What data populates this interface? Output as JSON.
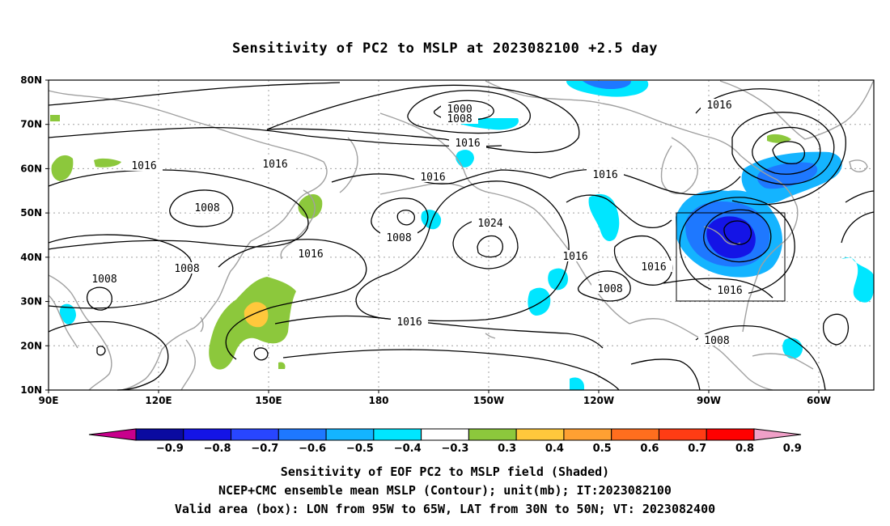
{
  "title": "Sensitivity of PC2 to MSLP at 2023082100 +2.5 day",
  "map": {
    "lat_labels": [
      "80N",
      "70N",
      "60N",
      "50N",
      "40N",
      "30N",
      "20N",
      "10N"
    ],
    "lon_labels": [
      "90E",
      "120E",
      "150E",
      "180",
      "150W",
      "120W",
      "90W",
      "60W"
    ],
    "contour_labels": [
      {
        "text": "1000",
        "role": "low-center"
      },
      {
        "text": "1008",
        "role": "low-ring"
      },
      {
        "text": "1016",
        "role": "ring"
      },
      {
        "text": "1016",
        "role": "ring"
      },
      {
        "text": "1016",
        "role": "ring"
      },
      {
        "text": "1016",
        "role": "ring"
      },
      {
        "text": "1016",
        "role": "ring"
      },
      {
        "text": "1016",
        "role": "ring"
      },
      {
        "text": "1008",
        "role": "low"
      },
      {
        "text": "1008",
        "role": "low"
      },
      {
        "text": "1008",
        "role": "low"
      },
      {
        "text": "1008",
        "role": "low"
      },
      {
        "text": "1008",
        "role": "low"
      },
      {
        "text": "1016",
        "role": "ring"
      },
      {
        "text": "1024",
        "role": "high-center"
      },
      {
        "text": "1016",
        "role": "ring"
      },
      {
        "text": "1016",
        "role": "ring"
      },
      {
        "text": "1016",
        "role": "ring"
      },
      {
        "text": "1008",
        "role": "low"
      },
      {
        "text": "1008",
        "role": "low"
      },
      {
        "text": "1016",
        "role": "ring"
      }
    ],
    "valid_box": {
      "lon_from": "95W",
      "lon_to": "65W",
      "lat_from": "30N",
      "lat_to": "50N"
    }
  },
  "colorbar": {
    "labels": [
      "-0.9",
      "-0.8",
      "-0.7",
      "-0.6",
      "-0.5",
      "-0.4",
      "-0.3",
      "0.3",
      "0.4",
      "0.5",
      "0.6",
      "0.7",
      "0.8",
      "0.9"
    ],
    "colors": [
      "#0a0aa0",
      "#1414e6",
      "#2846ff",
      "#1e78ff",
      "#14b4ff",
      "#00e6ff",
      "#ffffff",
      "#8cc83c",
      "#ffc83c",
      "#ffa032",
      "#ff6e1e",
      "#ff3c14",
      "#ff0000"
    ],
    "low_end_color": "#c8008c",
    "high_end_color": "#f0a0c8"
  },
  "captions": {
    "line1": "Sensitivity of EOF PC2 to MSLP field (Shaded)",
    "line2": "NCEP+CMC ensemble mean MSLP (Contour); unit(mb); IT:2023082100",
    "line3": "Valid area (box): LON from 95W to 65W, LAT from 30N to 50N; VT: 2023082400"
  },
  "colors": {
    "coast": "#a0a0a0",
    "contour": "#000000",
    "grid": "#a0a0a0"
  }
}
